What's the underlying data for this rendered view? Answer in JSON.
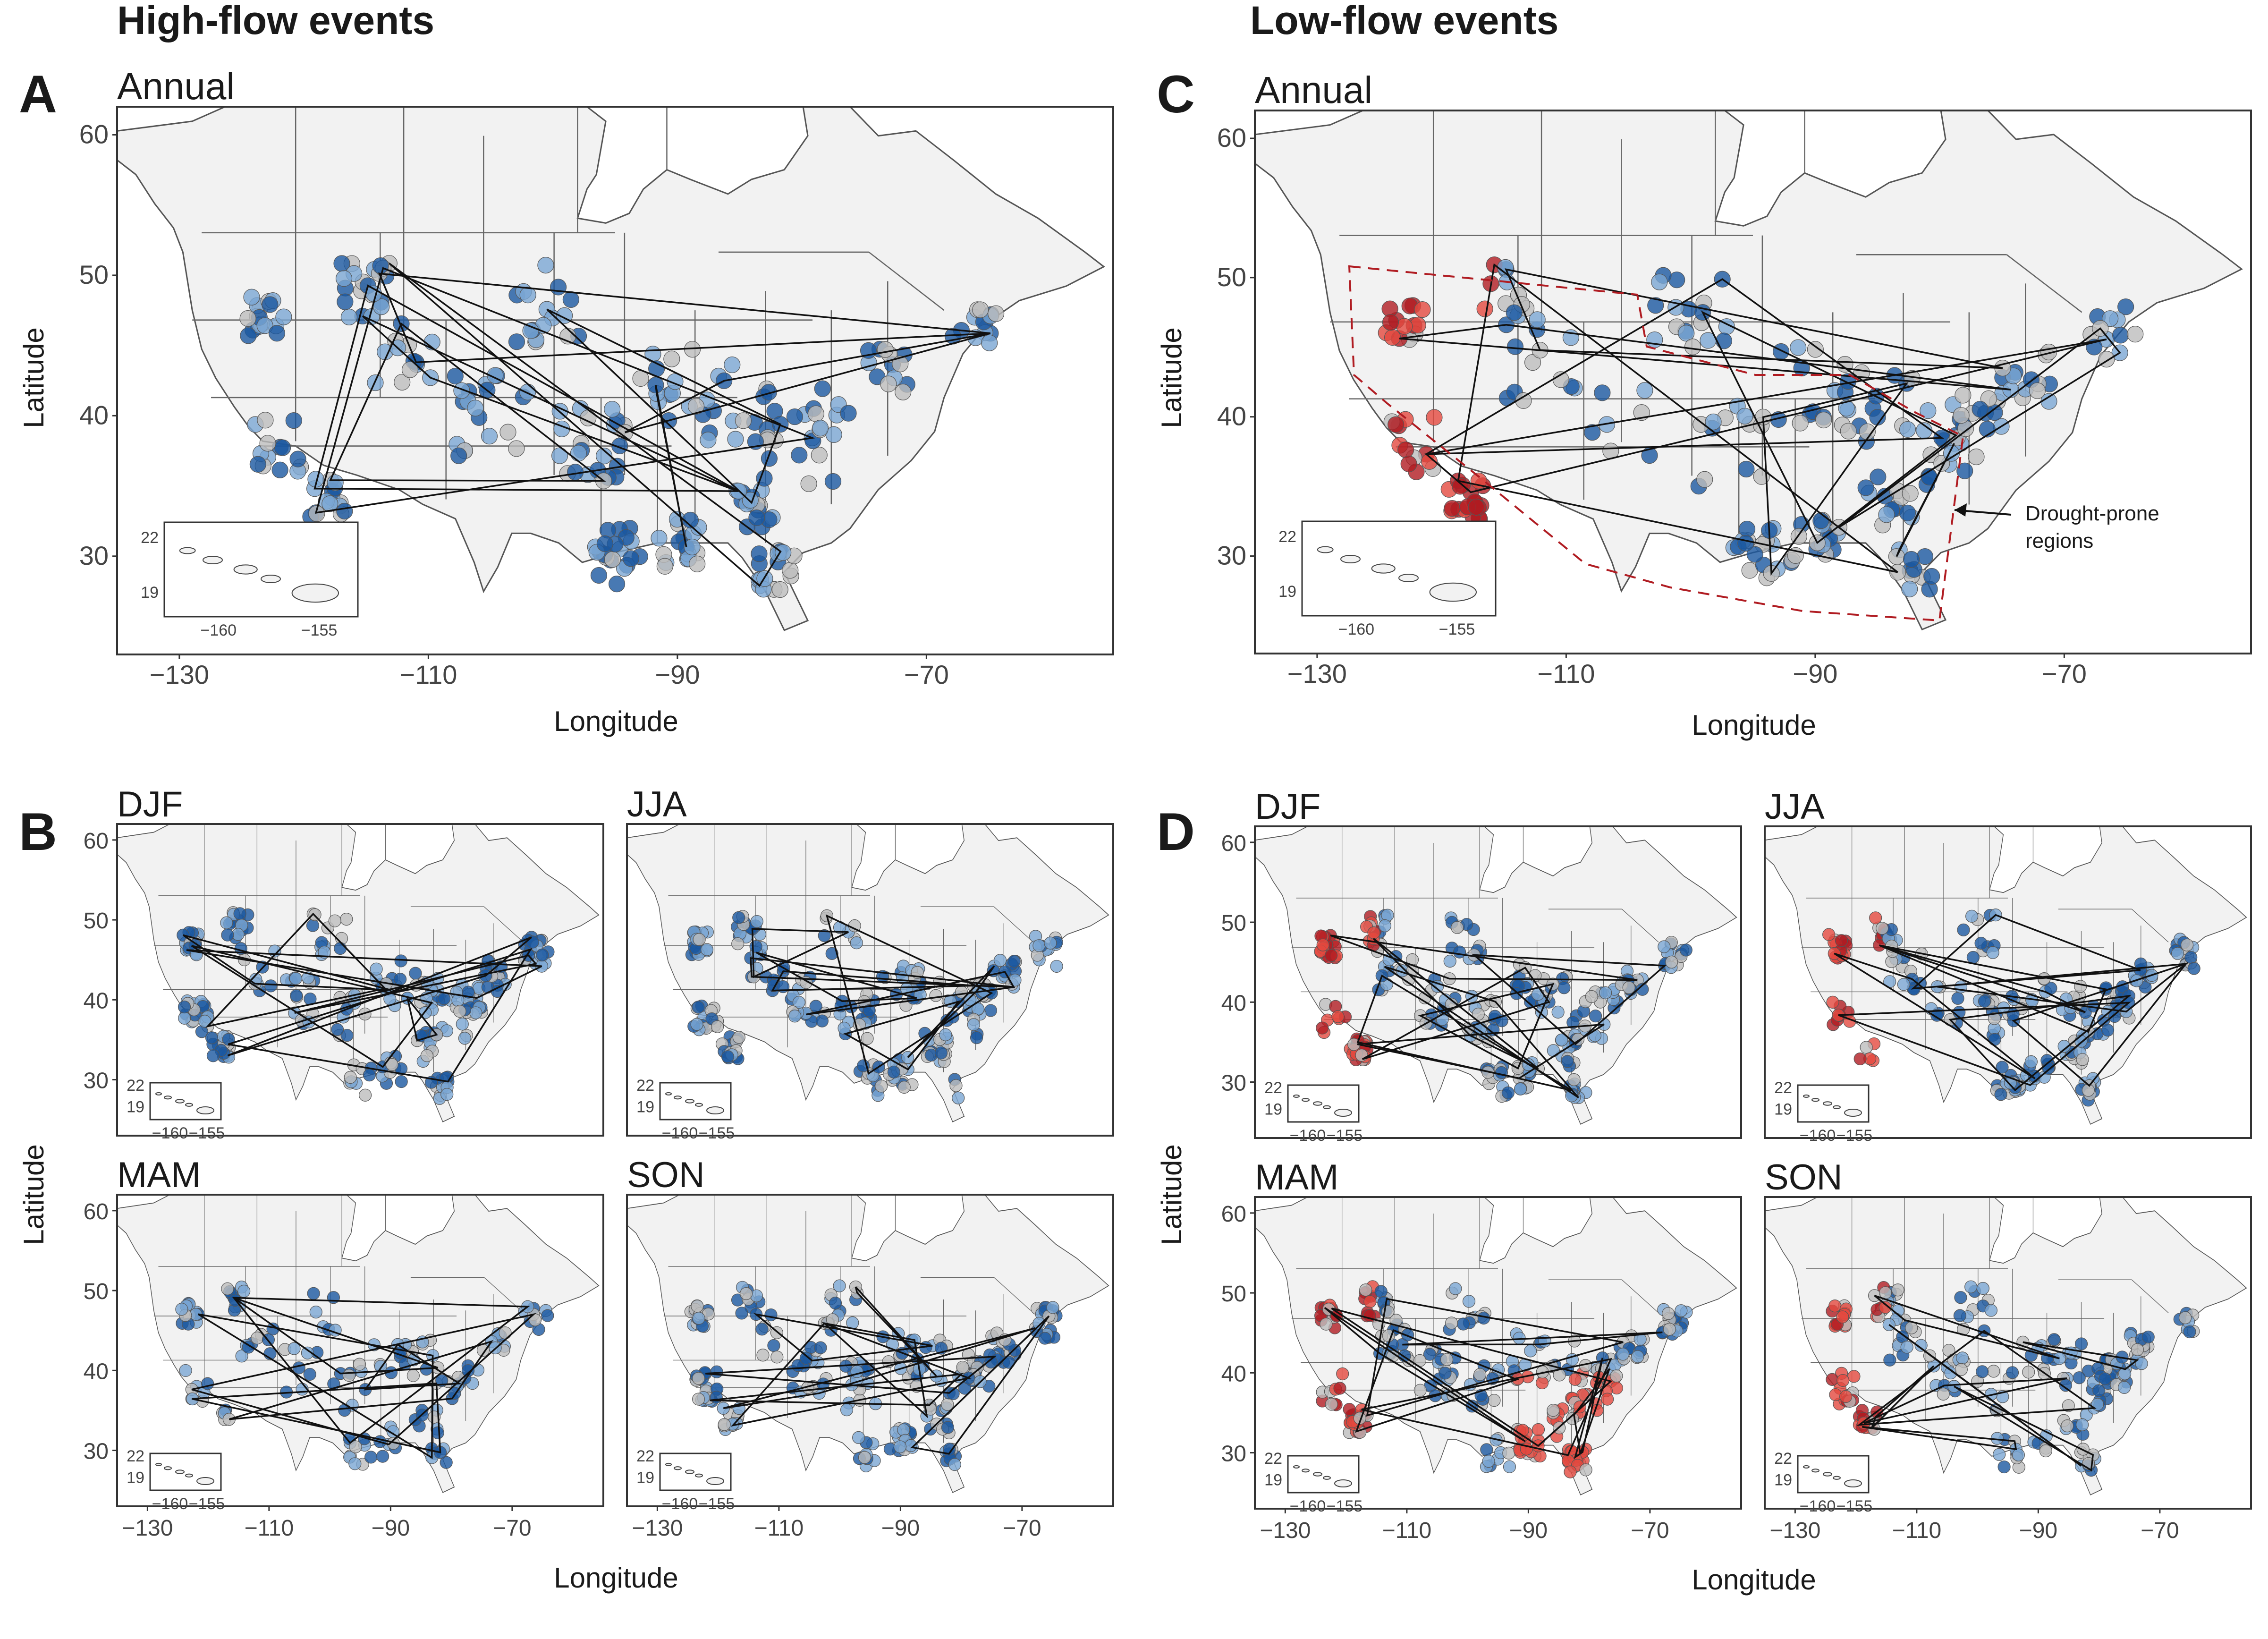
{
  "headers": {
    "high": "High-flow events",
    "low": "Low-flow events"
  },
  "panel_letters": [
    "A",
    "B",
    "C",
    "D"
  ],
  "axis": {
    "x_title": "Longitude",
    "y_title": "Latitude",
    "x_ticks": [
      "−130",
      "−110",
      "−90",
      "−70"
    ],
    "y_ticks": [
      "60",
      "50",
      "40",
      "30"
    ]
  },
  "inset": {
    "x_ticks": [
      "−160",
      "−155"
    ],
    "y_ticks": [
      "22",
      "19"
    ]
  },
  "panels": [
    {
      "id": "A",
      "title": "Annual",
      "type": "high"
    },
    {
      "id": "C",
      "title": "Annual",
      "type": "low"
    },
    {
      "id": "B-djf",
      "title": "DJF",
      "type": "high"
    },
    {
      "id": "B-jja",
      "title": "JJA",
      "type": "high"
    },
    {
      "id": "B-mam",
      "title": "MAM",
      "type": "high"
    },
    {
      "id": "B-son",
      "title": "SON",
      "type": "high"
    },
    {
      "id": "D-djf",
      "title": "DJF",
      "type": "low"
    },
    {
      "id": "D-jja",
      "title": "JJA",
      "type": "low"
    },
    {
      "id": "D-mam",
      "title": "MAM",
      "type": "low"
    },
    {
      "id": "D-son",
      "title": "SON",
      "type": "low"
    }
  ],
  "annotation": {
    "drought_line1": "Drought-prone",
    "drought_line2": "regions"
  },
  "colors": {
    "increase_dark": "#1a57a0",
    "increase_light": "#7aa6d3",
    "decrease_dark": "#b01c22",
    "decrease_light": "#e4493f",
    "no_change": "#bdbdbd",
    "land": "#f2f2f2",
    "drought_outline": "#b01c22"
  },
  "map_extent": {
    "lon": [
      -135,
      -55
    ],
    "lat": [
      23,
      62
    ]
  }
}
